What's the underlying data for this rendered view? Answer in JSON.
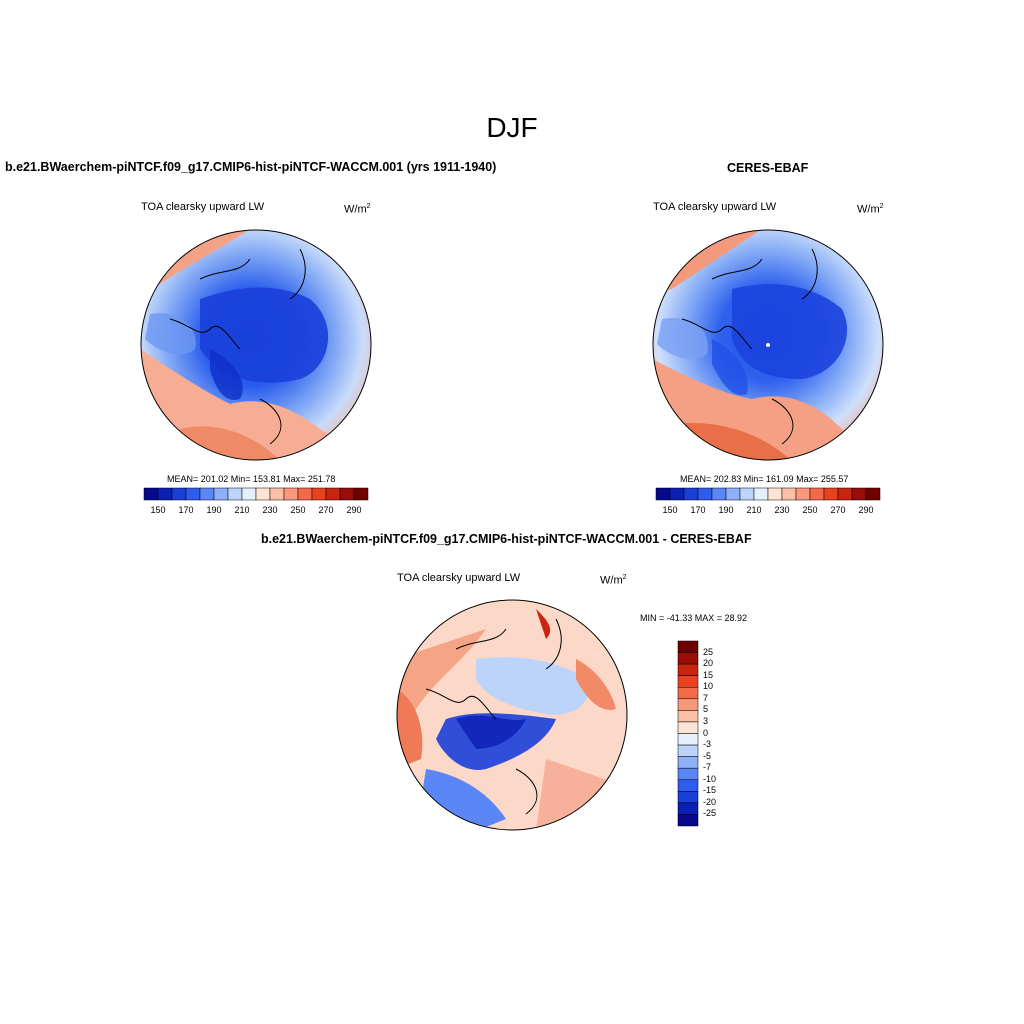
{
  "title": "DJF",
  "panels": {
    "model": {
      "title": "b.e21.BWaerchem-piNTCF.f09_g17.CMIP6-hist-piNTCF-WACCM.001 (yrs 1911-1940)",
      "variable": "TOA clearsky upward LW",
      "units": "W/m",
      "units_exp": "2",
      "stats": "MEAN= 201.02  Min= 153.81  Max= 251.78",
      "colorbar_ticks": [
        "150",
        "170",
        "190",
        "210",
        "230",
        "250",
        "270",
        "290"
      ]
    },
    "obs": {
      "title": "CERES-EBAF",
      "variable": "TOA clearsky upward LW",
      "units": "W/m",
      "units_exp": "2",
      "stats": "MEAN= 202.83  Min= 161.09  Max= 255.57",
      "colorbar_ticks": [
        "150",
        "170",
        "190",
        "210",
        "230",
        "250",
        "270",
        "290"
      ]
    },
    "diff": {
      "title": "b.e21.BWaerchem-piNTCF.f09_g17.CMIP6-hist-piNTCF-WACCM.001 - CERES-EBAF",
      "variable": "TOA clearsky upward LW",
      "units": "W/m",
      "units_exp": "2",
      "stats": "MIN = -41.33 MAX =  28.92",
      "colorbar_ticks": [
        "25",
        "20",
        "15",
        "10",
        "7",
        "5",
        "3",
        "0",
        "-3",
        "-5",
        "-7",
        "-10",
        "-15",
        "-20",
        "-25"
      ]
    }
  },
  "colors": {
    "abs_scale": [
      "#08088a",
      "#0a1fb4",
      "#1a3fd8",
      "#2e5cf0",
      "#5b86f5",
      "#8eb0f8",
      "#bcd3fa",
      "#e6effc",
      "#fde3d6",
      "#fbbfa6",
      "#f7987a",
      "#f26a48",
      "#e8421f",
      "#c8240f",
      "#9a0d06",
      "#6e0000"
    ],
    "diff_scale": [
      "#6e0000",
      "#9a0d06",
      "#c8240f",
      "#e8421f",
      "#f26a48",
      "#f7987a",
      "#fbbfa6",
      "#fde3d6",
      "#e6effc",
      "#bcd3fa",
      "#8eb0f8",
      "#5b86f5",
      "#2e5cf0",
      "#1a3fd8",
      "#0a1fb4",
      "#08088a"
    ]
  }
}
